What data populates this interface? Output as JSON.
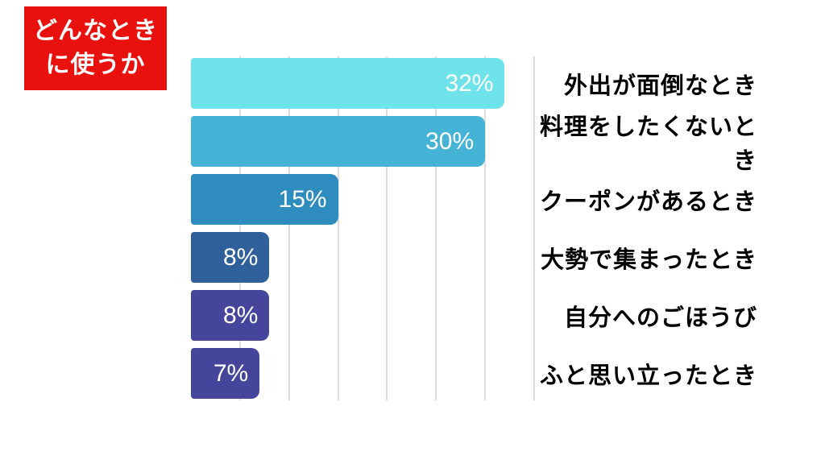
{
  "badge": {
    "line1": "どんなとき",
    "line2": "に使うか",
    "bg_color": "#e8110d",
    "text_color": "#ffffff"
  },
  "chart_data": {
    "type": "bar",
    "orientation": "horizontal",
    "title": "どんなときに使うか",
    "categories": [
      "外出が面倒なとき",
      "料理をしたくないとき",
      "クーポンがあるとき",
      "大勢で集まったとき",
      "自分へのごほうび",
      "ふと思い立ったとき"
    ],
    "values": [
      32,
      30,
      15,
      8,
      8,
      7
    ],
    "value_labels": [
      "32%",
      "30%",
      "15%",
      "8%",
      "8%",
      "7%"
    ],
    "bar_colors": [
      "#6fe3ea",
      "#45b3d6",
      "#2f8cbe",
      "#30609a",
      "#45469b",
      "#45469b"
    ],
    "value_label_color": "#ffffff",
    "category_label_color": "#000000",
    "xlim": [
      0,
      35
    ],
    "gridline_step": 5,
    "grid": true,
    "gridline_color": "#dcdcdc",
    "legend": false
  }
}
